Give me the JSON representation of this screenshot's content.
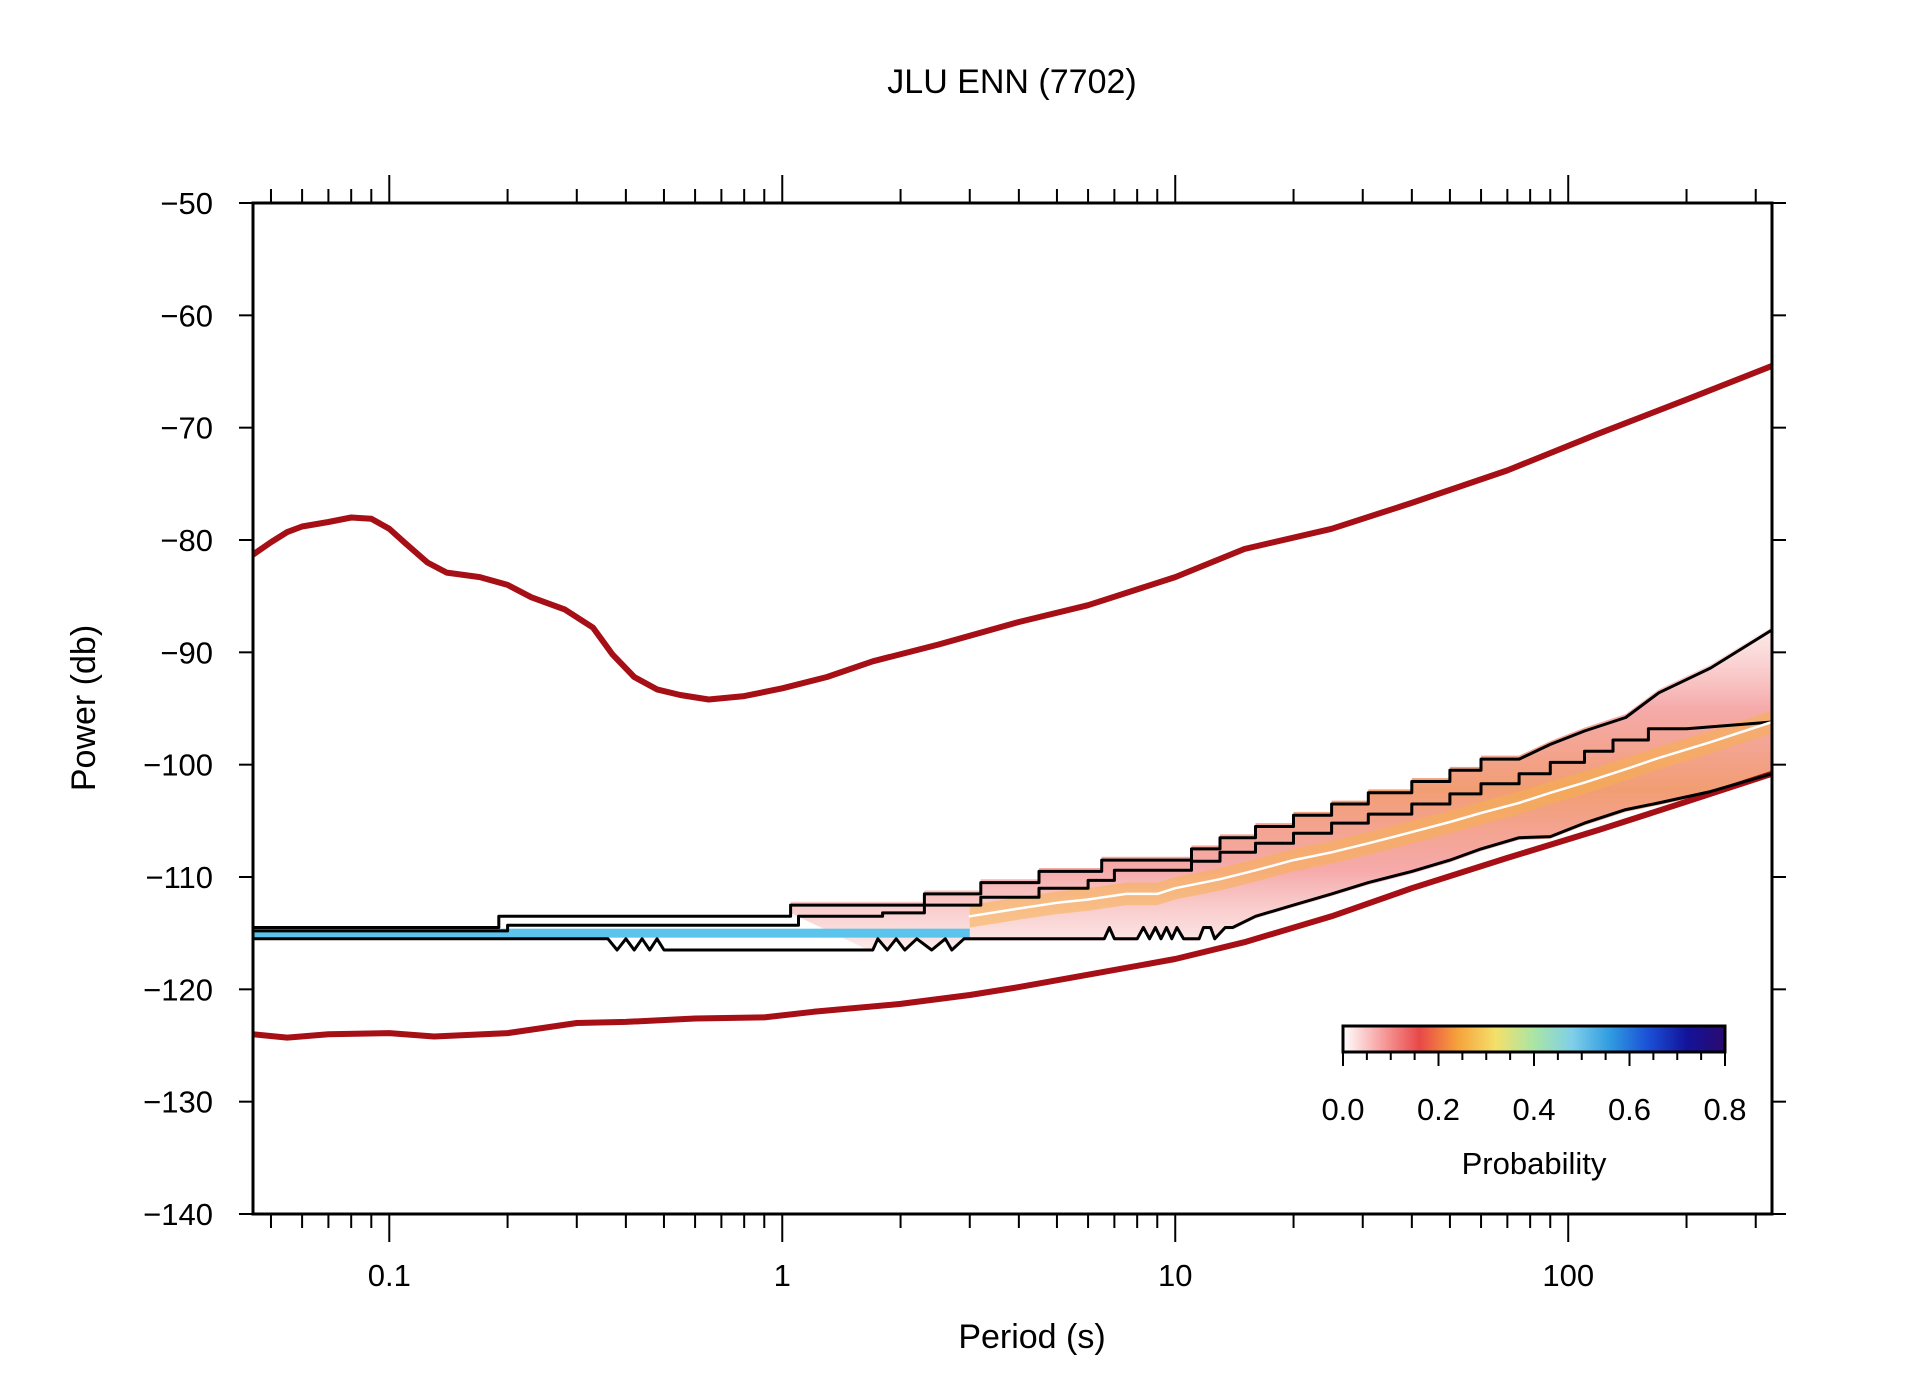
{
  "chart_data": {
    "type": "line",
    "title": "JLU ENN (7702)",
    "xlabel": "Period (s)",
    "ylabel": "Power (db)",
    "xscale": "log",
    "xlim": [
      0.045,
      330
    ],
    "ylim": [
      -140,
      -50
    ],
    "x_ticks": [
      0.1,
      1,
      10,
      100
    ],
    "x_tick_labels": [
      "0.1",
      "1",
      "10",
      "100"
    ],
    "y_ticks": [
      -50,
      -60,
      -70,
      -80,
      -90,
      -100,
      -110,
      -120,
      -130,
      -140
    ],
    "y_tick_labels": [
      "−50",
      "−60",
      "−70",
      "−80",
      "−90",
      "−100",
      "−110",
      "−120",
      "−130",
      "−140"
    ],
    "grid": false,
    "series": [
      {
        "color": "#a50f15",
        "points": [
          [
            0.045,
            -81.3
          ],
          [
            0.05,
            -80.2
          ],
          [
            0.055,
            -79.3
          ],
          [
            0.06,
            -78.8
          ],
          [
            0.07,
            -78.4
          ],
          [
            0.08,
            -78.0
          ],
          [
            0.09,
            -78.1
          ],
          [
            0.1,
            -79.0
          ],
          [
            0.11,
            -80.3
          ],
          [
            0.125,
            -82.0
          ],
          [
            0.14,
            -82.9
          ],
          [
            0.17,
            -83.3
          ],
          [
            0.2,
            -84.0
          ],
          [
            0.23,
            -85.1
          ],
          [
            0.28,
            -86.2
          ],
          [
            0.33,
            -87.8
          ],
          [
            0.37,
            -90.2
          ],
          [
            0.42,
            -92.2
          ],
          [
            0.48,
            -93.3
          ],
          [
            0.55,
            -93.8
          ],
          [
            0.65,
            -94.2
          ],
          [
            0.8,
            -93.9
          ],
          [
            1.0,
            -93.2
          ],
          [
            1.3,
            -92.2
          ],
          [
            1.7,
            -90.8
          ],
          [
            2.5,
            -89.3
          ],
          [
            4,
            -87.3
          ],
          [
            6,
            -85.8
          ],
          [
            10,
            -83.3
          ],
          [
            15,
            -80.8
          ],
          [
            25,
            -79.0
          ],
          [
            40,
            -76.7
          ],
          [
            70,
            -73.8
          ],
          [
            120,
            -70.5
          ],
          [
            200,
            -67.5
          ],
          [
            330,
            -64.5
          ]
        ]
      },
      {
        "color": "#a50f15",
        "points": [
          [
            0.045,
            -124.0
          ],
          [
            0.055,
            -124.3
          ],
          [
            0.07,
            -124.0
          ],
          [
            0.1,
            -123.9
          ],
          [
            0.13,
            -124.2
          ],
          [
            0.2,
            -123.9
          ],
          [
            0.3,
            -123.0
          ],
          [
            0.4,
            -122.9
          ],
          [
            0.6,
            -122.6
          ],
          [
            0.9,
            -122.5
          ],
          [
            1.2,
            -122.0
          ],
          [
            2,
            -121.3
          ],
          [
            3,
            -120.5
          ],
          [
            4,
            -119.8
          ],
          [
            6,
            -118.7
          ],
          [
            10,
            -117.3
          ],
          [
            15,
            -115.8
          ],
          [
            25,
            -113.5
          ],
          [
            40,
            -111.0
          ],
          [
            70,
            -108.3
          ],
          [
            120,
            -105.8
          ],
          [
            200,
            -103.3
          ],
          [
            330,
            -100.8
          ]
        ]
      },
      {
        "color": "#000000",
        "points": [
          [
            0.045,
            -114.8
          ],
          [
            0.2,
            -114.8
          ],
          [
            0.2,
            -114.3
          ],
          [
            1.1,
            -114.3
          ],
          [
            1.1,
            -113.5
          ],
          [
            1.8,
            -113.5
          ],
          [
            1.8,
            -113.2
          ],
          [
            2.3,
            -113.2
          ],
          [
            2.3,
            -112.5
          ],
          [
            3.2,
            -112.5
          ],
          [
            3.2,
            -111.8
          ],
          [
            4.5,
            -111.8
          ],
          [
            4.5,
            -111.0
          ],
          [
            6,
            -111.0
          ],
          [
            6,
            -110.3
          ],
          [
            7,
            -110.3
          ],
          [
            7,
            -109.4
          ],
          [
            11,
            -109.4
          ],
          [
            11,
            -108.6
          ],
          [
            13,
            -108.6
          ],
          [
            13,
            -107.8
          ],
          [
            16,
            -107.8
          ],
          [
            16,
            -107.0
          ],
          [
            20,
            -107.0
          ],
          [
            20,
            -106.1
          ],
          [
            25,
            -106.1
          ],
          [
            25,
            -105.2
          ],
          [
            31,
            -105.2
          ],
          [
            31,
            -104.4
          ],
          [
            40,
            -104.4
          ],
          [
            40,
            -103.5
          ],
          [
            50,
            -103.5
          ],
          [
            50,
            -102.6
          ],
          [
            60,
            -102.6
          ],
          [
            60,
            -101.7
          ],
          [
            75,
            -101.7
          ],
          [
            75,
            -100.8
          ],
          [
            90,
            -100.8
          ],
          [
            90,
            -99.8
          ],
          [
            110,
            -99.8
          ],
          [
            110,
            -98.8
          ],
          [
            130,
            -98.8
          ],
          [
            130,
            -97.8
          ],
          [
            160,
            -97.8
          ],
          [
            160,
            -96.8
          ],
          [
            200,
            -96.8
          ],
          [
            330,
            -96.2
          ]
        ]
      },
      {
        "color": "#000000",
        "points": [
          [
            0.045,
            -114.5
          ],
          [
            0.19,
            -114.5
          ],
          [
            0.19,
            -113.5
          ],
          [
            1.05,
            -113.5
          ],
          [
            1.05,
            -112.5
          ],
          [
            1.8,
            -112.5
          ],
          [
            2.3,
            -112.5
          ],
          [
            2.3,
            -111.5
          ],
          [
            3.2,
            -111.5
          ],
          [
            3.2,
            -110.5
          ],
          [
            4.5,
            -110.5
          ],
          [
            4.5,
            -109.5
          ],
          [
            6.5,
            -109.5
          ],
          [
            6.5,
            -108.5
          ],
          [
            11,
            -108.5
          ],
          [
            11,
            -107.5
          ],
          [
            13,
            -107.5
          ],
          [
            13,
            -106.5
          ],
          [
            16,
            -106.5
          ],
          [
            16,
            -105.5
          ],
          [
            20,
            -105.5
          ],
          [
            20,
            -104.5
          ],
          [
            25,
            -104.5
          ],
          [
            25,
            -103.5
          ],
          [
            31,
            -103.5
          ],
          [
            31,
            -102.5
          ],
          [
            40,
            -102.5
          ],
          [
            40,
            -101.5
          ],
          [
            50,
            -101.5
          ],
          [
            50,
            -100.5
          ],
          [
            60,
            -100.5
          ],
          [
            60,
            -99.5
          ],
          [
            75,
            -99.5
          ],
          [
            90,
            -98.2
          ],
          [
            110,
            -97.0
          ],
          [
            140,
            -95.8
          ],
          [
            170,
            -93.6
          ],
          [
            230,
            -91.4
          ],
          [
            330,
            -88.0
          ]
        ]
      },
      {
        "color": "#000000",
        "points": [
          [
            0.045,
            -115.5
          ],
          [
            0.19,
            -115.5
          ],
          [
            0.19,
            -115.5
          ],
          [
            0.36,
            -115.5
          ],
          [
            0.38,
            -116.5
          ],
          [
            0.4,
            -115.5
          ],
          [
            0.42,
            -116.5
          ],
          [
            0.44,
            -115.5
          ],
          [
            0.46,
            -116.5
          ],
          [
            0.48,
            -115.5
          ],
          [
            0.5,
            -116.5
          ],
          [
            1.7,
            -116.5
          ],
          [
            1.75,
            -115.5
          ],
          [
            1.85,
            -116.5
          ],
          [
            1.95,
            -115.5
          ],
          [
            2.05,
            -116.5
          ],
          [
            2.2,
            -115.5
          ],
          [
            2.4,
            -116.5
          ],
          [
            2.6,
            -115.5
          ],
          [
            2.7,
            -116.5
          ],
          [
            2.9,
            -115.5
          ],
          [
            6.6,
            -115.5
          ],
          [
            6.8,
            -114.5
          ],
          [
            7.0,
            -115.5
          ],
          [
            8.0,
            -115.5
          ],
          [
            8.3,
            -114.5
          ],
          [
            8.6,
            -115.5
          ],
          [
            8.9,
            -114.5
          ],
          [
            9.2,
            -115.5
          ],
          [
            9.5,
            -114.5
          ],
          [
            9.8,
            -115.5
          ],
          [
            10.1,
            -114.5
          ],
          [
            10.5,
            -115.5
          ],
          [
            11.5,
            -115.5
          ],
          [
            11.8,
            -114.5
          ],
          [
            12.3,
            -114.5
          ],
          [
            12.6,
            -115.5
          ],
          [
            13.4,
            -114.5
          ],
          [
            14.0,
            -114.5
          ],
          [
            16,
            -113.5
          ],
          [
            20,
            -112.5
          ],
          [
            25,
            -111.5
          ],
          [
            31,
            -110.5
          ],
          [
            40,
            -109.5
          ],
          [
            50,
            -108.5
          ],
          [
            60,
            -107.5
          ],
          [
            75,
            -106.5
          ],
          [
            90,
            -106.4
          ],
          [
            110,
            -105.2
          ],
          [
            140,
            -104.0
          ],
          [
            170,
            -103.4
          ],
          [
            230,
            -102.4
          ],
          [
            330,
            -100.8
          ]
        ]
      },
      {
        "color": "#ffffff",
        "points": [
          [
            3.0,
            -113.5
          ],
          [
            4,
            -112.8
          ],
          [
            5,
            -112.3
          ],
          [
            6,
            -112.0
          ],
          [
            7.5,
            -111.5
          ],
          [
            9,
            -111.5
          ],
          [
            10,
            -111.0
          ],
          [
            13,
            -110.2
          ],
          [
            16,
            -109.4
          ],
          [
            20,
            -108.5
          ],
          [
            25,
            -107.8
          ],
          [
            31,
            -107.0
          ],
          [
            40,
            -106.0
          ],
          [
            50,
            -105.1
          ],
          [
            60,
            -104.3
          ],
          [
            75,
            -103.4
          ],
          [
            90,
            -102.5
          ],
          [
            110,
            -101.6
          ],
          [
            140,
            -100.4
          ],
          [
            170,
            -99.4
          ],
          [
            230,
            -98.0
          ],
          [
            330,
            -96.2
          ]
        ]
      }
    ],
    "colorbar": {
      "label": "Probability",
      "range": [
        0,
        0.8
      ],
      "tick_labels": [
        "0.0",
        "0.2",
        "0.4",
        "0.6",
        "0.8"
      ],
      "colors": [
        "#ffffff",
        "#f7a1a1",
        "#e84848",
        "#f6a23c",
        "#f4e06a",
        "#a9e5a5",
        "#7fcfe9",
        "#2f9be0",
        "#1a4fd6",
        "#13139a",
        "#2a0a6e"
      ]
    }
  }
}
